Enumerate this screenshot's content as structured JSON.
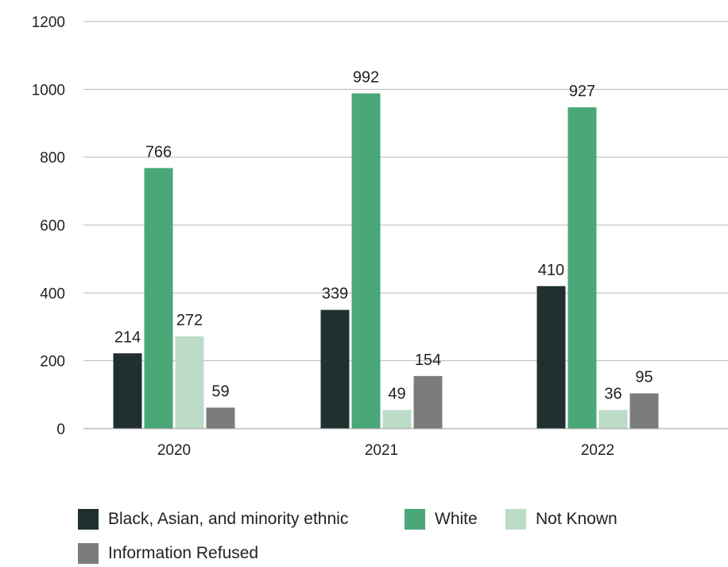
{
  "chart_data": {
    "type": "bar",
    "categories": [
      "2020",
      "2021",
      "2022"
    ],
    "series": [
      {
        "name": "Black, Asian, and minority ethnic",
        "values": [
          214,
          339,
          410
        ],
        "color": "#203030"
      },
      {
        "name": "White",
        "values": [
          766,
          992,
          927
        ],
        "color": "#4aa878"
      },
      {
        "name": "Not Known",
        "values": [
          272,
          49,
          36
        ],
        "color": "#bcdcc8"
      },
      {
        "name": "Information Refused",
        "values": [
          59,
          154,
          95
        ],
        "color": "#7a7d7b"
      }
    ],
    "bar_heights_estimated": [
      [
        222,
        350,
        420
      ],
      [
        768,
        988,
        947
      ],
      [
        272,
        55,
        55
      ],
      [
        62,
        155,
        104
      ]
    ],
    "title": "",
    "xlabel": "",
    "ylabel": "",
    "ylim": [
      0,
      1200
    ],
    "yticks": [
      "0",
      "200",
      "400",
      "600",
      "800",
      "1000",
      "1200"
    ],
    "grid": true,
    "legend_position": "bottom"
  }
}
